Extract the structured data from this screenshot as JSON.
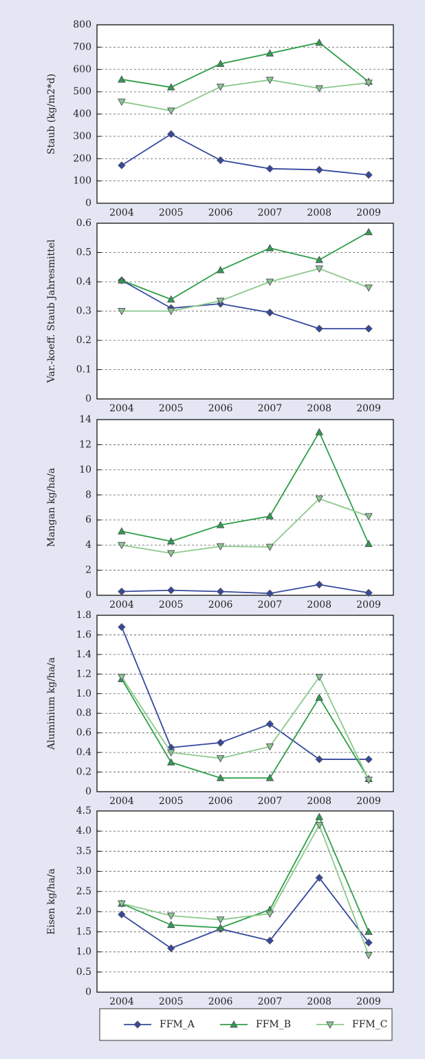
{
  "chart_data": [
    {
      "type": "line",
      "y_label": "Staub (kg/m2*d)",
      "categories": [
        "2004",
        "2005",
        "2006",
        "2007",
        "2008",
        "2009"
      ],
      "ylim": [
        0,
        800
      ],
      "yticks": [
        0,
        100,
        200,
        300,
        400,
        500,
        600,
        700,
        800
      ],
      "grid": true,
      "series": [
        {
          "name": "FFM_A",
          "color": "#34499e",
          "values": [
            170,
            310,
            193,
            155,
            150,
            127
          ]
        },
        {
          "name": "FFM_B",
          "color": "#2e9e48",
          "values": [
            555,
            520,
            625,
            672,
            720,
            545
          ]
        },
        {
          "name": "FFM_C",
          "color": "#8cc98c",
          "values": [
            455,
            415,
            522,
            553,
            515,
            540
          ]
        }
      ]
    },
    {
      "type": "line",
      "y_label": "Var.-koeff. Staub Jahresmittel",
      "categories": [
        "2004",
        "2005",
        "2006",
        "2007",
        "2008",
        "2009"
      ],
      "ylim": [
        0,
        0.6
      ],
      "yticks": [
        0,
        0.1,
        0.2,
        0.3,
        0.4,
        0.5,
        0.6
      ],
      "grid": true,
      "series": [
        {
          "color": "#34499e",
          "values": [
            0.405,
            0.31,
            0.325,
            0.295,
            0.24,
            0.24
          ]
        },
        {
          "color": "#2e9e48",
          "values": [
            0.405,
            0.34,
            0.44,
            0.515,
            0.475,
            0.57
          ]
        },
        {
          "color": "#8cc98c",
          "values": [
            0.3,
            0.3,
            0.335,
            0.4,
            0.445,
            0.38
          ]
        }
      ]
    },
    {
      "type": "line",
      "y_label": "Mangan kg/ha/a",
      "categories": [
        "2004",
        "2005",
        "2006",
        "2007",
        "2008",
        "2009"
      ],
      "ylim": [
        0,
        14
      ],
      "yticks": [
        0,
        2,
        4,
        6,
        8,
        10,
        12,
        14
      ],
      "grid": true,
      "series": [
        {
          "color": "#34499e",
          "values": [
            0.3,
            0.4,
            0.3,
            0.15,
            0.85,
            0.2
          ]
        },
        {
          "color": "#2e9e48",
          "values": [
            5.1,
            4.3,
            5.6,
            6.3,
            13,
            4.1
          ]
        },
        {
          "color": "#8cc98c",
          "values": [
            4.0,
            3.35,
            3.9,
            3.85,
            7.7,
            6.3
          ]
        }
      ]
    },
    {
      "type": "line",
      "y_label": "Aluminium kg/ha/a",
      "categories": [
        "2004",
        "2005",
        "2006",
        "2007",
        "2008",
        "2009"
      ],
      "ylim": [
        0,
        1.8
      ],
      "yticks": [
        0,
        0.2,
        0.4,
        0.6,
        0.8,
        {
          "value": 1,
          "label": "1.0"
        },
        1.2,
        1.4,
        1.6,
        1.8
      ],
      "grid": true,
      "series": [
        {
          "color": "#34499e",
          "values": [
            1.68,
            0.45,
            0.5,
            0.69,
            0.33,
            0.33
          ]
        },
        {
          "color": "#2e9e48",
          "values": [
            1.15,
            0.3,
            0.14,
            0.14,
            0.96,
            0.13
          ]
        },
        {
          "color": "#8cc98c",
          "values": [
            1.17,
            0.4,
            0.34,
            0.46,
            1.17,
            0.12
          ]
        }
      ]
    },
    {
      "type": "line",
      "y_label": "Eisen kg/ha/a",
      "categories": [
        "2004",
        "2005",
        "2006",
        "2007",
        "2008",
        "2009"
      ],
      "ylim": [
        0,
        4.5
      ],
      "yticks": [
        0,
        0.5,
        {
          "value": 1,
          "label": "1.0"
        },
        1.5,
        {
          "value": 2,
          "label": "2.0"
        },
        2.5,
        {
          "value": 3,
          "label": "3.0"
        },
        3.5,
        {
          "value": 4,
          "label": "4.0"
        },
        4.5
      ],
      "grid": true,
      "series": [
        {
          "color": "#34499e",
          "values": [
            1.93,
            1.09,
            1.57,
            1.28,
            2.84,
            1.23
          ]
        },
        {
          "color": "#2e9e48",
          "values": [
            2.2,
            1.67,
            1.6,
            2.05,
            4.35,
            1.5
          ]
        },
        {
          "color": "#8cc98c",
          "values": [
            2.2,
            1.9,
            1.8,
            1.95,
            4.15,
            0.92
          ]
        }
      ]
    }
  ]
}
